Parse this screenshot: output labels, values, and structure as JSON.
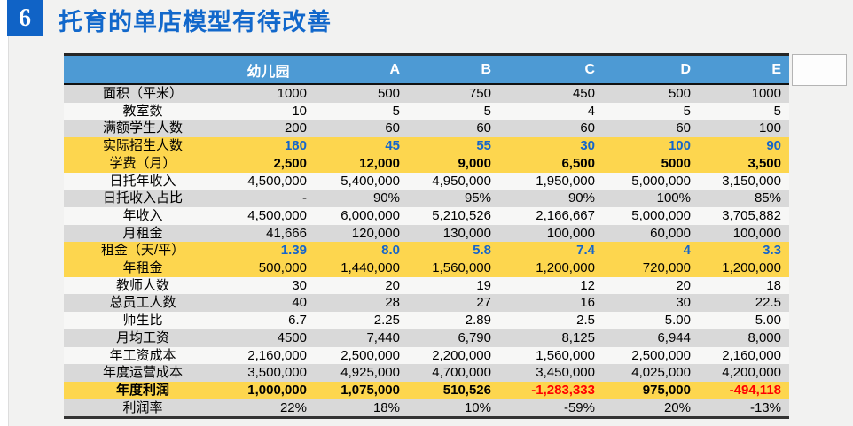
{
  "slide": {
    "page_number": "6",
    "title": "托育的单店模型有待改善"
  },
  "table": {
    "header": {
      "label_col": "",
      "columns": [
        "幼儿园",
        "A",
        "B",
        "C",
        "D",
        "E"
      ]
    },
    "rows": [
      {
        "label": "面积（平米）",
        "values": [
          "1000",
          "500",
          "750",
          "450",
          "500",
          "1000"
        ],
        "bg": "gray",
        "value_style": "normal"
      },
      {
        "label": "教室数",
        "values": [
          "10",
          "5",
          "5",
          "4",
          "5",
          "5"
        ],
        "bg": "white",
        "value_style": "normal"
      },
      {
        "label": "满额学生人数",
        "values": [
          "200",
          "60",
          "60",
          "60",
          "60",
          "100"
        ],
        "bg": "gray",
        "value_style": "normal"
      },
      {
        "label": "实际招生人数",
        "values": [
          "180",
          "45",
          "55",
          "30",
          "100",
          "90"
        ],
        "bg": "yellow",
        "value_style": "blue-bold"
      },
      {
        "label": "学费（月）",
        "values": [
          "2,500",
          "12,000",
          "9,000",
          "6,500",
          "5000",
          "3,500"
        ],
        "bg": "yellow",
        "value_style": "bold"
      },
      {
        "label": "日托年收入",
        "values": [
          "4,500,000",
          "5,400,000",
          "4,950,000",
          "1,950,000",
          "5,000,000",
          "3,150,000"
        ],
        "bg": "white",
        "value_style": "normal"
      },
      {
        "label": "日托收入占比",
        "values": [
          "-",
          "90%",
          "95%",
          "90%",
          "100%",
          "85%"
        ],
        "bg": "gray",
        "value_style": "normal"
      },
      {
        "label": "年收入",
        "values": [
          "4,500,000",
          "6,000,000",
          "5,210,526",
          "2,166,667",
          "5,000,000",
          "3,705,882"
        ],
        "bg": "white",
        "value_style": "normal"
      },
      {
        "label": "月租金",
        "values": [
          "41,666",
          "120,000",
          "130,000",
          "100,000",
          "60,000",
          "100,000"
        ],
        "bg": "gray",
        "value_style": "normal"
      },
      {
        "label": "租金（天/平）",
        "values": [
          "1.39",
          "8.0",
          "5.8",
          "7.4",
          "4",
          "3.3"
        ],
        "bg": "yellow",
        "value_style": "blue-bold"
      },
      {
        "label": "年租金",
        "values": [
          "500,000",
          "1,440,000",
          "1,560,000",
          "1,200,000",
          "720,000",
          "1,200,000"
        ],
        "bg": "yellow",
        "value_style": "normal"
      },
      {
        "label": "教师人数",
        "values": [
          "30",
          "20",
          "19",
          "12",
          "20",
          "18"
        ],
        "bg": "white",
        "value_style": "normal"
      },
      {
        "label": "总员工人数",
        "values": [
          "40",
          "28",
          "27",
          "16",
          "30",
          "22.5"
        ],
        "bg": "gray",
        "value_style": "normal"
      },
      {
        "label": "师生比",
        "values": [
          "6.7",
          "2.25",
          "2.89",
          "2.5",
          "5.00",
          "5.00"
        ],
        "bg": "white",
        "value_style": "normal"
      },
      {
        "label": "月均工资",
        "values": [
          "4500",
          "7,440",
          "6,790",
          "8,125",
          "6,944",
          "8,000"
        ],
        "bg": "gray",
        "value_style": "normal"
      },
      {
        "label": "年工资成本",
        "values": [
          "2,160,000",
          "2,500,000",
          "2,200,000",
          "1,560,000",
          "2,500,000",
          "2,160,000"
        ],
        "bg": "white",
        "value_style": "normal"
      },
      {
        "label": "年度运营成本",
        "values": [
          "3,500,000",
          "4,925,000",
          "4,700,000",
          "3,450,000",
          "4,025,000",
          "4,200,000"
        ],
        "bg": "gray",
        "value_style": "normal"
      },
      {
        "label": "年度利润",
        "values": [
          "1,000,000",
          "1,075,000",
          "510,526",
          "-1,283,333",
          "975,000",
          "-494,118"
        ],
        "bg": "yellow",
        "value_style": "bold",
        "label_bold": true,
        "negatives_red": true
      },
      {
        "label": "利润率",
        "values": [
          "22%",
          "18%",
          "10%",
          "-59%",
          "20%",
          "-13%"
        ],
        "bg": "gray",
        "value_style": "normal"
      }
    ]
  },
  "colors": {
    "title_blue": "#1268cb",
    "badge_bg": "#1063c6",
    "header_bg": "#4d9ad4",
    "highlight_row": "#fdd64e",
    "row_gray": "#d9d9d9",
    "row_white": "#f7f7f6",
    "accent_blue": "#1565cb",
    "negative_red": "#fe0000"
  }
}
